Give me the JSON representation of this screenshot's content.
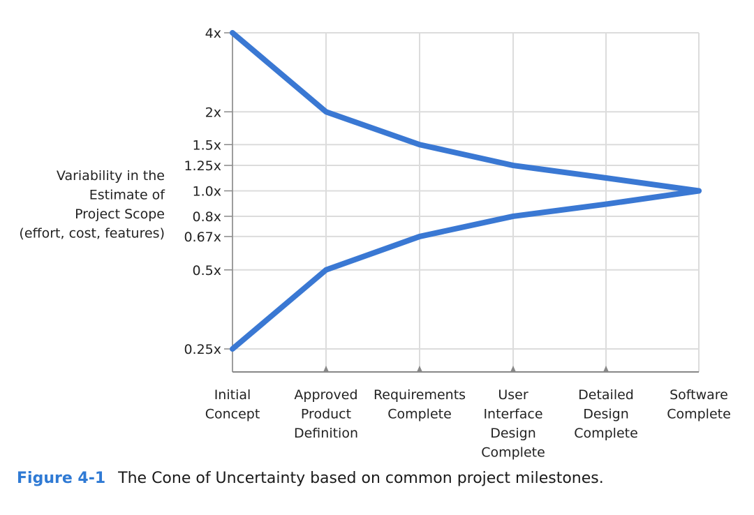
{
  "chart_data": {
    "type": "line",
    "scale": "log",
    "ylabel": [
      "Variability in the",
      "Estimate of",
      "Project Scope",
      "(effort, cost, features)"
    ],
    "xlabel": "",
    "x_categories": [
      [
        "Initial",
        "Concept"
      ],
      [
        "Approved",
        "Product",
        "Definition"
      ],
      [
        "Requirements",
        "Complete"
      ],
      [
        "User",
        "Interface",
        "Design",
        "Complete"
      ],
      [
        "Detailed",
        "Design",
        "Complete"
      ],
      [
        "Software",
        "Complete"
      ]
    ],
    "y_ticks": [
      {
        "value": 4,
        "label": "4x"
      },
      {
        "value": 2,
        "label": "2x"
      },
      {
        "value": 1.5,
        "label": "1.5x"
      },
      {
        "value": 1.25,
        "label": "1.25x"
      },
      {
        "value": 1.0,
        "label": "1.0x"
      },
      {
        "value": 0.8,
        "label": "0.8x"
      },
      {
        "value": 0.67,
        "label": "0.67x"
      },
      {
        "value": 0.5,
        "label": "0.5x"
      },
      {
        "value": 0.25,
        "label": "0.25x"
      }
    ],
    "series": [
      {
        "values": [
          4,
          2,
          1.5,
          1.25,
          1.12,
          1.0
        ]
      },
      {
        "values": [
          0.25,
          0.5,
          0.67,
          0.8,
          0.89,
          1.0
        ]
      }
    ],
    "grid": true,
    "line_color": "#3a78d3"
  },
  "caption": {
    "number": "Figure 4-1",
    "text": "The Cone of Uncertainty based on common project milestones."
  }
}
